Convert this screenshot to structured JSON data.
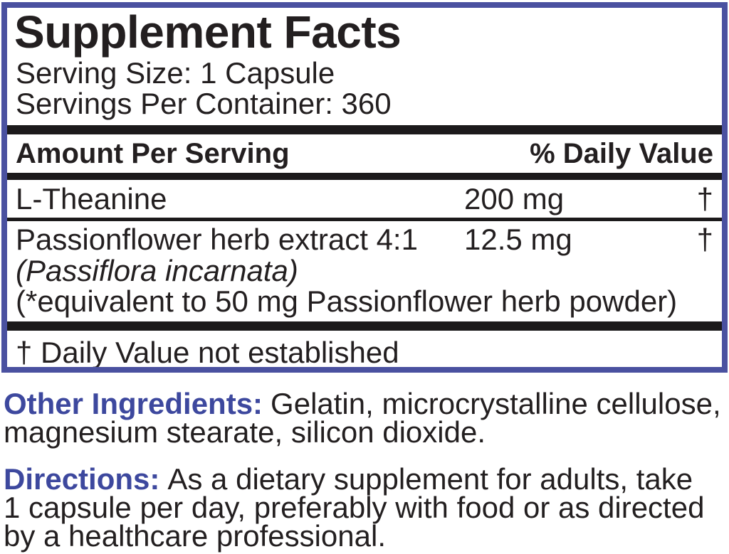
{
  "panel": {
    "title": "Supplement Facts",
    "serving_size": "Serving Size: 1 Capsule",
    "servings_per_container": "Servings Per Container: 360",
    "columns": {
      "amount_header": "Amount Per Serving",
      "daily_value_header": "% Daily Value"
    },
    "rows": [
      {
        "name": "L-Theanine",
        "amount": "200 mg",
        "daily_value": "†"
      },
      {
        "name": "Passionflower herb extract 4:1",
        "amount": "12.5 mg",
        "daily_value": "†",
        "latin_name": "(Passiflora incarnata)",
        "equivalence_note": "(*equivalent to 50 mg Passionflower herb powder)"
      }
    ],
    "footnote": "† Daily Value not established"
  },
  "other_ingredients": {
    "label": "Other Ingredients:",
    "lines": [
      "Gelatin, microcrystalline cellulose,",
      "magnesium stearate, silicon dioxide."
    ]
  },
  "directions": {
    "label": "Directions:",
    "lines": [
      "As a dietary supplement for adults, take",
      "1 capsule per day, preferably with food or as directed",
      "by a healthcare professional."
    ]
  },
  "colors": {
    "border_blue": "#4a51a0",
    "heading_blue": "#3d489e",
    "text_black": "#231f20",
    "bar_black": "#1c1a1b"
  }
}
